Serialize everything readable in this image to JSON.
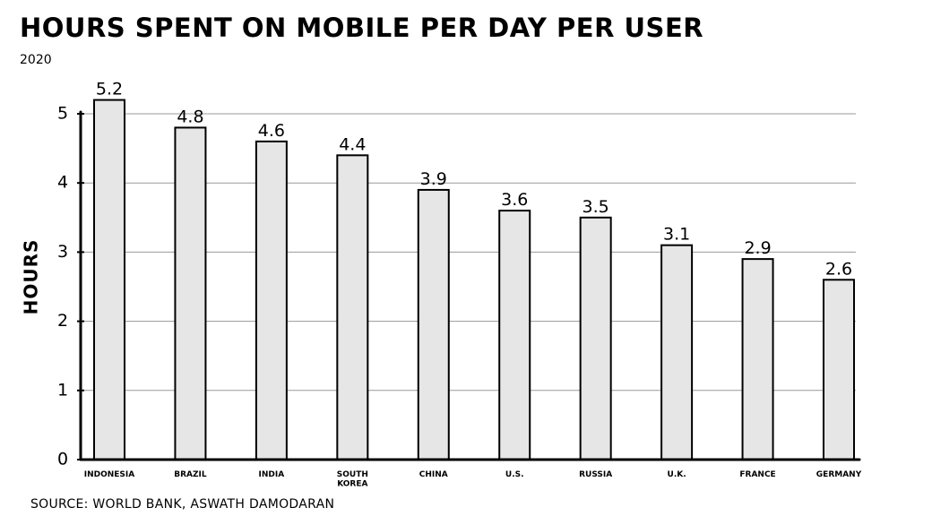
{
  "chart_data": {
    "type": "bar",
    "title": "HOURS SPENT ON MOBILE PER DAY PER USER",
    "subtitle": "2020",
    "ylabel": "HOURS",
    "xlabel": "",
    "source": "SOURCE: WORLD BANK, ASWATH DAMODARAN",
    "categories": [
      "INDONESIA",
      "BRAZIL",
      "INDIA",
      "SOUTH KOREA",
      "CHINA",
      "U.S.",
      "RUSSIA",
      "U.K.",
      "FRANCE",
      "GERMANY"
    ],
    "values": [
      5.2,
      4.8,
      4.6,
      4.4,
      3.9,
      3.6,
      3.5,
      3.1,
      2.9,
      2.6
    ],
    "value_labels": [
      "5.2",
      "4.8",
      "4.6",
      "4.4",
      "3.9",
      "3.6",
      "3.5",
      "3.1",
      "2.9",
      "2.6"
    ],
    "yticks": [
      0,
      1,
      2,
      3,
      4,
      5
    ],
    "ylim": [
      0,
      5
    ],
    "grid": true,
    "colors": {
      "bar_fill": "#e6e6e6",
      "bar_stroke": "#000000",
      "grid": "#999999",
      "axis": "#000000"
    }
  }
}
